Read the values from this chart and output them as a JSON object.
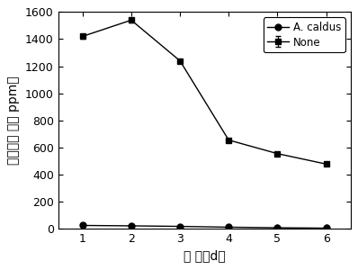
{
  "x": [
    1,
    2,
    3,
    4,
    5,
    6
  ],
  "none_y": [
    1420,
    1540,
    1240,
    655,
    555,
    478
  ],
  "none_yerr_upper": [
    15,
    15,
    0,
    0,
    0,
    0
  ],
  "none_yerr_lower": [
    15,
    15,
    0,
    0,
    0,
    0
  ],
  "caldus_y": [
    25,
    22,
    18,
    12,
    8,
    5
  ],
  "none_color": "#000000",
  "caldus_color": "#000000",
  "xlabel": "时 间（d）",
  "ylabel": "硫化氢浓 度（ ppm）",
  "legend_none": "None",
  "legend_caldus": "A. caldus",
  "xlim": [
    0.5,
    6.5
  ],
  "ylim": [
    0,
    1600
  ],
  "yticks": [
    0,
    200,
    400,
    600,
    800,
    1000,
    1200,
    1400,
    1600
  ],
  "xticks": [
    1,
    2,
    3,
    4,
    5,
    6
  ],
  "label_fontsize": 10,
  "tick_fontsize": 9,
  "legend_fontsize": 8.5,
  "background_color": "#ffffff"
}
